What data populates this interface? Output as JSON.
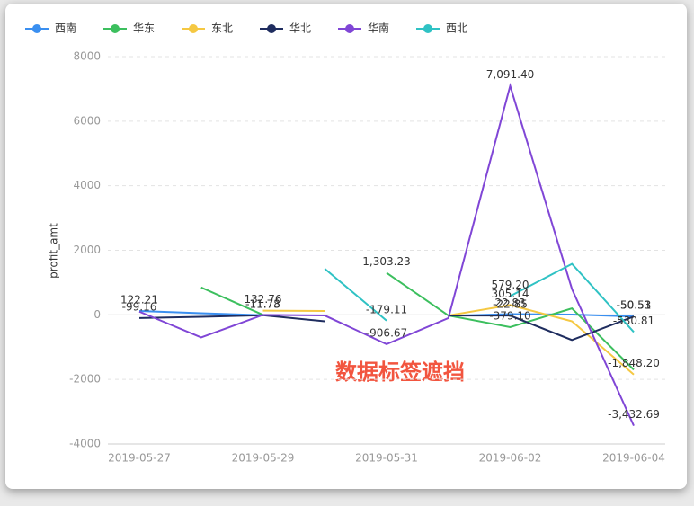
{
  "chart_data": {
    "type": "line",
    "categories": [
      "2019-05-27",
      null,
      "2019-05-29",
      null,
      "2019-05-31",
      null,
      "2019-06-02",
      null,
      "2019-06-04"
    ],
    "y_label": "profit_amt",
    "annotation": "数据标签遮挡",
    "ylim": [
      -4000,
      8000
    ],
    "yticks": [
      -4000,
      -2000,
      0,
      2000,
      4000,
      6000,
      8000
    ],
    "grid": true,
    "series": [
      {
        "name": "西南",
        "color": "#3a8ff0",
        "values": [
          122.21,
          50,
          -11.73,
          null,
          null,
          -30,
          22.83,
          10,
          -50.53
        ],
        "value_labels": [
          "122.21",
          null,
          "-11.73",
          null,
          null,
          null,
          "22.83",
          null,
          "-50.53"
        ]
      },
      {
        "name": "华东",
        "color": "#3cbf5e",
        "values": [
          null,
          850,
          0,
          null,
          1303.23,
          -20,
          -379.1,
          200,
          -1700
        ],
        "value_labels": [
          null,
          null,
          null,
          null,
          "1,303.23",
          null,
          "-379.10",
          null,
          null
        ]
      },
      {
        "name": "东北",
        "color": "#f5c842",
        "values": [
          null,
          null,
          132.76,
          120,
          null,
          -20,
          305.14,
          -200,
          -1848.2
        ],
        "value_labels": [
          null,
          null,
          "132.76",
          null,
          null,
          null,
          "305.14",
          null,
          "-1,848.20"
        ]
      },
      {
        "name": "华北",
        "color": "#1f2d5f",
        "values": [
          -99.16,
          -60,
          -11.78,
          -200,
          null,
          -20,
          -22.85,
          -780,
          -50.51
        ],
        "value_labels": [
          "-99.16",
          null,
          "-11.78",
          null,
          null,
          null,
          "-22.85",
          null,
          "-50.51"
        ]
      },
      {
        "name": "华南",
        "color": "#8046d6",
        "values": [
          100,
          -700,
          0,
          -20,
          -906.67,
          -100,
          7091.4,
          800,
          -3432.69
        ],
        "value_labels": [
          null,
          null,
          null,
          null,
          "-906.67",
          null,
          "7,091.40",
          null,
          "-3,432.69"
        ]
      },
      {
        "name": "西北",
        "color": "#2fc2c4",
        "values": [
          null,
          null,
          null,
          1430,
          -179.11,
          null,
          579.2,
          1580,
          -530.81
        ],
        "value_labels": [
          null,
          null,
          null,
          null,
          "-179.11",
          null,
          "579.20",
          null,
          "-530.81"
        ]
      }
    ]
  }
}
